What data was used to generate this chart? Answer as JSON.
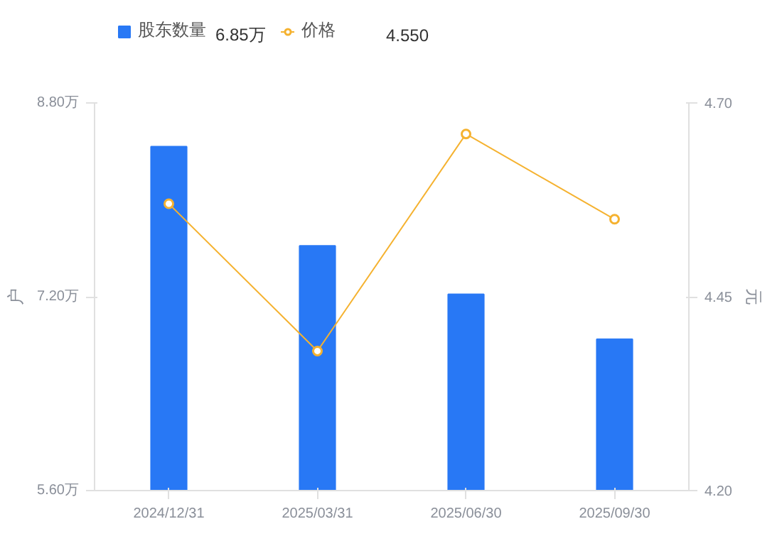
{
  "chart_data": {
    "type": "bar",
    "categories": [
      "2024/12/31",
      "2025/03/31",
      "2025/06/30",
      "2025/09/30"
    ],
    "series": [
      {
        "name": "股东数量",
        "color": "#2878f5",
        "values": [
          8.44,
          7.62,
          7.22,
          6.85
        ]
      },
      {
        "name": "价格",
        "type": "line",
        "axis": "y2",
        "color": "#f5b230",
        "marker": "circle",
        "values": [
          4.57,
          4.38,
          4.66,
          4.55
        ]
      }
    ],
    "ylabel": "户",
    "y2label": "元",
    "ylim": [
      5.6,
      8.8
    ],
    "yticks": [
      {
        "value": 5.6,
        "label": "5.60万"
      },
      {
        "value": 7.2,
        "label": "7.20万"
      },
      {
        "value": 8.8,
        "label": "8.80万"
      }
    ],
    "y2lim": [
      4.2,
      4.7
    ],
    "y2ticks": [
      {
        "value": 4.2,
        "label": "4.20"
      },
      {
        "value": 4.45,
        "label": "4.45"
      },
      {
        "value": 4.7,
        "label": "4.70"
      }
    ],
    "annotations": [
      "6.85万",
      "4.550"
    ],
    "legend": "top left",
    "grid": false
  }
}
